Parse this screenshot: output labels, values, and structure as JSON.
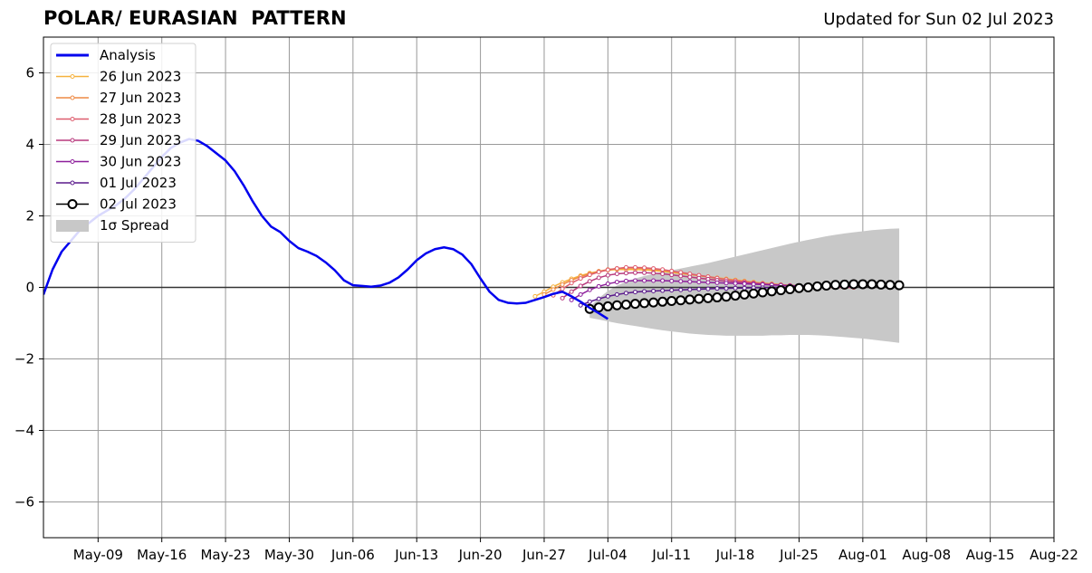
{
  "header": {
    "title": "POLAR/ EURASIAN  PATTERN",
    "updated": "Updated for Sun 02 Jul 2023"
  },
  "chart_data": {
    "type": "line",
    "title": "POLAR/ EURASIAN  PATTERN",
    "subtitle": "Updated for Sun 02 Jul 2023",
    "xlabel": "",
    "ylabel": "",
    "xlim": [
      "2023-05-03",
      "2023-08-22"
    ],
    "ylim": [
      -7,
      7
    ],
    "grid": true,
    "legend_position": "top-left",
    "x_ticks": [
      "May-09",
      "May-16",
      "May-23",
      "May-30",
      "Jun-06",
      "Jun-13",
      "Jun-20",
      "Jun-27",
      "Jul-04",
      "Jul-11",
      "Jul-18",
      "Jul-25",
      "Aug-01",
      "Aug-08",
      "Aug-15",
      "Aug-22"
    ],
    "y_ticks": [
      -6,
      -4,
      -2,
      0,
      2,
      4,
      6
    ],
    "y_tick_labels": [
      "−6",
      "−4",
      "−2",
      "0",
      "2",
      "4",
      "6"
    ],
    "analysis": {
      "name": "Analysis",
      "color": "#0000ee",
      "start_date": "2023-05-03",
      "values": [
        -0.2,
        0.5,
        1.0,
        1.3,
        1.6,
        1.8,
        2.0,
        2.15,
        2.3,
        2.5,
        2.75,
        3.05,
        3.35,
        3.65,
        3.9,
        4.05,
        4.15,
        4.1,
        3.95,
        3.75,
        3.55,
        3.25,
        2.85,
        2.4,
        2.0,
        1.7,
        1.55,
        1.3,
        1.1,
        1.0,
        0.88,
        0.7,
        0.48,
        0.2,
        0.06,
        0.04,
        0.02,
        0.05,
        0.13,
        0.28,
        0.5,
        0.76,
        0.95,
        1.07,
        1.12,
        1.07,
        0.92,
        0.65,
        0.25,
        -0.12,
        -0.35,
        -0.43,
        -0.45,
        -0.43,
        -0.35,
        -0.27,
        -0.18,
        -0.12,
        -0.25,
        -0.4,
        -0.57,
        -0.72,
        -0.88
      ]
    },
    "forecasts": [
      {
        "name": "26 Jun 2023",
        "color": "#f6b13d",
        "start_date": "2023-06-26",
        "values": [
          -0.25,
          -0.12,
          0.02,
          0.14,
          0.24,
          0.33,
          0.4,
          0.45,
          0.48,
          0.5,
          0.5,
          0.5,
          0.49,
          0.47,
          0.45,
          0.42,
          0.39,
          0.36,
          0.33,
          0.3,
          0.27,
          0.24,
          0.21,
          0.18,
          0.15,
          0.12,
          0.1,
          0.08,
          0.06,
          0.04,
          0.03,
          0.02,
          0.01,
          0.0,
          0.0,
          0.0
        ]
      },
      {
        "name": "27 Jun 2023",
        "color": "#ee8a45",
        "start_date": "2023-06-27",
        "values": [
          -0.2,
          -0.06,
          0.08,
          0.2,
          0.3,
          0.38,
          0.45,
          0.5,
          0.53,
          0.54,
          0.54,
          0.53,
          0.51,
          0.48,
          0.45,
          0.41,
          0.37,
          0.33,
          0.29,
          0.25,
          0.22,
          0.19,
          0.16,
          0.13,
          0.1,
          0.08,
          0.06,
          0.04,
          0.03,
          0.02,
          0.01,
          0.0,
          0.0,
          0.0,
          0.0
        ]
      },
      {
        "name": "28 Jun 2023",
        "color": "#de5d6e",
        "start_date": "2023-06-28",
        "values": [
          -0.22,
          -0.04,
          0.12,
          0.25,
          0.35,
          0.43,
          0.49,
          0.53,
          0.56,
          0.56,
          0.55,
          0.53,
          0.5,
          0.46,
          0.42,
          0.38,
          0.34,
          0.3,
          0.26,
          0.22,
          0.19,
          0.16,
          0.13,
          0.11,
          0.09,
          0.07,
          0.05,
          0.04,
          0.03,
          0.02,
          0.01,
          0.0,
          0.0,
          0.0
        ]
      },
      {
        "name": "29 Jun 2023",
        "color": "#b8397d",
        "start_date": "2023-06-29",
        "values": [
          -0.3,
          -0.12,
          0.04,
          0.17,
          0.27,
          0.34,
          0.38,
          0.4,
          0.41,
          0.41,
          0.4,
          0.38,
          0.35,
          0.32,
          0.29,
          0.26,
          0.23,
          0.2,
          0.17,
          0.15,
          0.13,
          0.11,
          0.09,
          0.07,
          0.06,
          0.05,
          0.04,
          0.03,
          0.02,
          0.02,
          0.01,
          0.01,
          0.01
        ]
      },
      {
        "name": "30 Jun 2023",
        "color": "#8d1f9b",
        "start_date": "2023-06-30",
        "values": [
          -0.35,
          -0.2,
          -0.07,
          0.03,
          0.1,
          0.15,
          0.18,
          0.19,
          0.19,
          0.19,
          0.19,
          0.18,
          0.17,
          0.16,
          0.15,
          0.14,
          0.13,
          0.12,
          0.11,
          0.1,
          0.09,
          0.08,
          0.07,
          0.06,
          0.05,
          0.04,
          0.04,
          0.03,
          0.03,
          0.02,
          0.02,
          0.02
        ]
      },
      {
        "name": "01 Jul 2023",
        "color": "#5a1a8c",
        "start_date": "2023-07-01",
        "values": [
          -0.5,
          -0.4,
          -0.32,
          -0.25,
          -0.2,
          -0.16,
          -0.13,
          -0.11,
          -0.1,
          -0.09,
          -0.08,
          -0.07,
          -0.06,
          -0.05,
          -0.04,
          -0.03,
          -0.03,
          -0.02,
          -0.02,
          -0.01,
          -0.01,
          0.0,
          0.0,
          0.01,
          0.01,
          0.01,
          0.02,
          0.02,
          0.02,
          0.02,
          0.02
        ]
      },
      {
        "name": "02 Jul 2023",
        "color": "#000000",
        "start_date": "2023-07-02",
        "values": [
          -0.6,
          -0.56,
          -0.53,
          -0.5,
          -0.48,
          -0.46,
          -0.44,
          -0.42,
          -0.4,
          -0.38,
          -0.36,
          -0.34,
          -0.32,
          -0.3,
          -0.28,
          -0.26,
          -0.23,
          -0.2,
          -0.17,
          -0.14,
          -0.11,
          -0.08,
          -0.05,
          -0.02,
          0.0,
          0.03,
          0.05,
          0.07,
          0.08,
          0.09,
          0.09,
          0.09,
          0.08,
          0.07,
          0.06
        ]
      }
    ],
    "spread": {
      "name": "1σ Spread",
      "color": "#c8c8c8",
      "start_date": "2023-07-02",
      "upper": [
        -0.55,
        -0.3,
        -0.1,
        0.05,
        0.16,
        0.25,
        0.32,
        0.38,
        0.43,
        0.48,
        0.53,
        0.58,
        0.63,
        0.68,
        0.74,
        0.8,
        0.86,
        0.92,
        0.98,
        1.04,
        1.1,
        1.16,
        1.22,
        1.28,
        1.33,
        1.38,
        1.43,
        1.47,
        1.51,
        1.54,
        1.57,
        1.6,
        1.62,
        1.64,
        1.65
      ],
      "lower": [
        -0.85,
        -0.9,
        -0.95,
        -1.0,
        -1.04,
        -1.08,
        -1.12,
        -1.16,
        -1.2,
        -1.23,
        -1.26,
        -1.29,
        -1.31,
        -1.33,
        -1.34,
        -1.35,
        -1.35,
        -1.35,
        -1.35,
        -1.35,
        -1.34,
        -1.34,
        -1.33,
        -1.33,
        -1.33,
        -1.34,
        -1.35,
        -1.37,
        -1.39,
        -1.41,
        -1.43,
        -1.46,
        -1.49,
        -1.52,
        -1.55
      ]
    }
  }
}
